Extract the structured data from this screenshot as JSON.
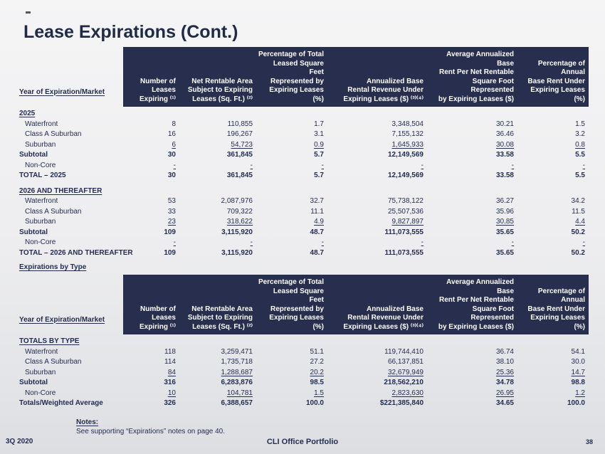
{
  "slide": {
    "title": "Lease Expirations (Cont.)",
    "between_heading": "Expirations by Type",
    "footer": {
      "notes_label": "Notes:",
      "notes_text": "See supporting “Expirations” notes on page 40.",
      "quarter": "3Q 2020",
      "portfolio": "CLI Office Portfolio",
      "page_number": "38"
    }
  },
  "colors": {
    "header_background": "#272e4e",
    "text_navy": "#232d52",
    "slide_background": "#ededef"
  },
  "table_header": {
    "row_label": "Year of Expiration/Market",
    "columns": [
      "Number of\nLeases Expiring ⁽¹⁾",
      "Net Rentable Area\nSubject to Expiring\nLeases (Sq. Ft.) ⁽²⁾",
      "Percentage of Total\nLeased Square Feet\nRepresented by\nExpiring Leases (%)",
      "Annualized Base\nRental Revenue Under\nExpiring Leases ($) ⁽³⁾⁽⁴⁾",
      "Average Annualized Base\nRent Per Net Rentable\nSquare Foot Represented\nby Expiring Leases ($)",
      "Percentage of Annual\nBase Rent Under\nExpiring Leases (%)"
    ]
  },
  "table1": {
    "rows": [
      {
        "type": "section",
        "label": "2025"
      },
      {
        "type": "item",
        "label": "Waterfront",
        "cells": [
          "8",
          "110,855",
          "1.7",
          "3,348,504",
          "30.21",
          "1.5"
        ]
      },
      {
        "type": "item",
        "label": "Class A Suburban",
        "cells": [
          "16",
          "196,267",
          "3.1",
          "7,155,132",
          "36.46",
          "3.2"
        ]
      },
      {
        "type": "item",
        "u": true,
        "label": "Suburban",
        "cells": [
          "6",
          "54,723",
          "0.9",
          "1,645,933",
          "30.08",
          "0.8"
        ]
      },
      {
        "type": "subtotal",
        "label": "Subtotal",
        "cells": [
          "30",
          "361,845",
          "5.7",
          "12,149,569",
          "33.58",
          "5.5"
        ]
      },
      {
        "type": "item",
        "u": true,
        "label": "Non-Core",
        "cells": [
          "-",
          "-",
          "-",
          "-",
          "-",
          "-"
        ]
      },
      {
        "type": "total",
        "label": "TOTAL – 2025",
        "cells": [
          "30",
          "361,845",
          "5.7",
          "12,149,569",
          "33.58",
          "5.5"
        ]
      },
      {
        "type": "section",
        "spacer": true,
        "label": "2026 AND THEREAFTER"
      },
      {
        "type": "item",
        "label": "Waterfront",
        "cells": [
          "53",
          "2,087,976",
          "32.7",
          "75,738,122",
          "36.27",
          "34.2"
        ]
      },
      {
        "type": "item",
        "label": "Class A Suburban",
        "cells": [
          "33",
          "709,322",
          "11.1",
          "25,507,536",
          "35.96",
          "11.5"
        ]
      },
      {
        "type": "item",
        "u": true,
        "label": "Suburban",
        "cells": [
          "23",
          "318,622",
          "4.9",
          "9,827,897",
          "30.85",
          "4.4"
        ]
      },
      {
        "type": "subtotal",
        "label": "Subtotal",
        "cells": [
          "109",
          "3,115,920",
          "48.7",
          "111,073,555",
          "35.65",
          "50.2"
        ]
      },
      {
        "type": "item",
        "u": true,
        "label": "Non-Core",
        "cells": [
          "-",
          "-",
          "-",
          "-",
          "-",
          "-"
        ]
      },
      {
        "type": "total",
        "label": "TOTAL – 2026 AND THEREAFTER",
        "cells": [
          "109",
          "3,115,920",
          "48.7",
          "111,073,555",
          "35.65",
          "50.2"
        ]
      }
    ]
  },
  "table2": {
    "rows": [
      {
        "type": "section",
        "label": "TOTALS BY TYPE"
      },
      {
        "type": "item",
        "label": "Waterfront",
        "cells": [
          "118",
          "3,259,471",
          "51.1",
          "119,744,410",
          "36.74",
          "54.1"
        ]
      },
      {
        "type": "item",
        "label": "Class A Suburban",
        "cells": [
          "114",
          "1,735,718",
          "27.2",
          "66,137,851",
          "38.10",
          "30.0"
        ]
      },
      {
        "type": "item",
        "u": true,
        "label": "Suburban",
        "cells": [
          "84",
          "1,288,687",
          "20.2",
          "32,679,949",
          "25.36",
          "14.7"
        ]
      },
      {
        "type": "subtotal",
        "label": "Subtotal",
        "cells": [
          "316",
          "6,283,876",
          "98.5",
          "218,562,210",
          "34.78",
          "98.8"
        ]
      },
      {
        "type": "item",
        "u": true,
        "label": "Non-Core",
        "cells": [
          "10",
          "104,781",
          "1.5",
          "2,823,630",
          "26.95",
          "1.2"
        ]
      },
      {
        "type": "total",
        "label": "Totals/Weighted Average",
        "cells": [
          "326",
          "6,388,657",
          "100.0",
          "$221,385,840",
          "34.65",
          "100.0"
        ]
      }
    ]
  }
}
